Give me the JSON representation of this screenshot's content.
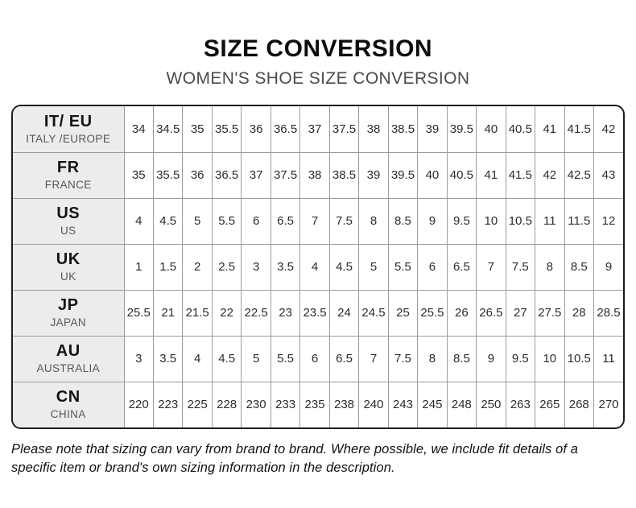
{
  "header": {
    "title": "SIZE CONVERSION",
    "subtitle": "WOMEN'S SHOE SIZE CONVERSION"
  },
  "chart_data": {
    "type": "table",
    "title": "SIZE CONVERSION",
    "subtitle": "WOMEN'S SHOE SIZE CONVERSION",
    "columns_per_row": 17,
    "rows": [
      {
        "code": "IT/ EU",
        "region": "ITALY /EUROPE",
        "values": [
          "34",
          "34.5",
          "35",
          "35.5",
          "36",
          "36.5",
          "37",
          "37.5",
          "38",
          "38.5",
          "39",
          "39.5",
          "40",
          "40.5",
          "41",
          "41.5",
          "42"
        ]
      },
      {
        "code": "FR",
        "region": "FRANCE",
        "values": [
          "35",
          "35.5",
          "36",
          "36.5",
          "37",
          "37.5",
          "38",
          "38.5",
          "39",
          "39.5",
          "40",
          "40.5",
          "41",
          "41.5",
          "42",
          "42.5",
          "43"
        ]
      },
      {
        "code": "US",
        "region": "US",
        "values": [
          "4",
          "4.5",
          "5",
          "5.5",
          "6",
          "6.5",
          "7",
          "7.5",
          "8",
          "8.5",
          "9",
          "9.5",
          "10",
          "10.5",
          "11",
          "11.5",
          "12"
        ]
      },
      {
        "code": "UK",
        "region": "UK",
        "values": [
          "1",
          "1.5",
          "2",
          "2.5",
          "3",
          "3.5",
          "4",
          "4.5",
          "5",
          "5.5",
          "6",
          "6.5",
          "7",
          "7.5",
          "8",
          "8.5",
          "9"
        ]
      },
      {
        "code": "JP",
        "region": "JAPAN",
        "values": [
          "25.5",
          "21",
          "21.5",
          "22",
          "22.5",
          "23",
          "23.5",
          "24",
          "24.5",
          "25",
          "25.5",
          "26",
          "26.5",
          "27",
          "27.5",
          "28",
          "28.5"
        ]
      },
      {
        "code": "AU",
        "region": "AUSTRALIA",
        "values": [
          "3",
          "3.5",
          "4",
          "4.5",
          "5",
          "5.5",
          "6",
          "6.5",
          "7",
          "7.5",
          "8",
          "8.5",
          "9",
          "9.5",
          "10",
          "10.5",
          "11"
        ]
      },
      {
        "code": "CN",
        "region": "CHINA",
        "values": [
          "220",
          "223",
          "225",
          "228",
          "230",
          "233",
          "235",
          "238",
          "240",
          "243",
          "245",
          "248",
          "250",
          "263",
          "265",
          "268",
          "270"
        ]
      }
    ]
  },
  "footer": {
    "note": "Please note that sizing can vary from brand to brand. Where possible, we include fit details of a specific item or brand's own sizing information in the description."
  },
  "colors": {
    "header_column_bg": "#ececec",
    "grid_line": "#9c9c9c",
    "outer_border": "#1c1c1c",
    "title_text": "#0d0d0d",
    "subtitle_text": "#4a4a4a",
    "region_text": "#565656",
    "cell_text": "#2c2c2c"
  }
}
